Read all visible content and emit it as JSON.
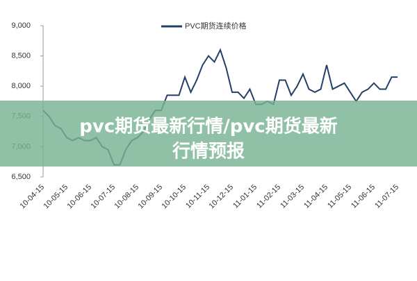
{
  "chart_data": {
    "type": "line",
    "categories": [
      "10-04-15",
      null,
      null,
      null,
      "10-05-15",
      null,
      null,
      null,
      "10-06-15",
      null,
      null,
      null,
      "10-07-15",
      null,
      null,
      null,
      "10-08-15",
      null,
      null,
      null,
      "10-09-15",
      null,
      null,
      null,
      "10-10-15",
      null,
      null,
      null,
      "10-11-15",
      null,
      null,
      null,
      "10-12-15",
      null,
      null,
      null,
      "11-01-15",
      null,
      null,
      null,
      "11-02-15",
      null,
      null,
      null,
      "11-03-15",
      null,
      null,
      null,
      "11-04-15",
      null,
      null,
      null,
      "11-05-15",
      null,
      null,
      null,
      "11-06-15",
      null,
      null,
      null,
      "11-07-15"
    ],
    "series": [
      {
        "name": "PVC期货连续价格",
        "color": "#243f66",
        "values": [
          7600,
          7500,
          7350,
          7300,
          7150,
          7100,
          7150,
          7100,
          7100,
          7150,
          7000,
          6950,
          6700,
          6700,
          6950,
          7100,
          7150,
          7250,
          7450,
          7600,
          7600,
          7850,
          7850,
          7850,
          8150,
          7900,
          8100,
          8350,
          8500,
          8400,
          8600,
          8300,
          7900,
          7900,
          7800,
          7950,
          7700,
          7700,
          7750,
          7700,
          8100,
          8100,
          7850,
          8000,
          8200,
          7950,
          7900,
          7950,
          8350,
          7950,
          8000,
          8050,
          7900,
          7750,
          7900,
          7950,
          8050,
          7950,
          7950,
          8150,
          8150
        ]
      }
    ],
    "ylim": [
      6500,
      9000
    ],
    "yticks": [
      {
        "value": 6500,
        "label": "6,500"
      },
      {
        "value": 7000,
        "label": "7,000"
      },
      {
        "value": 7500,
        "label": "7,500"
      },
      {
        "value": 8000,
        "label": "8,000"
      },
      {
        "value": 8500,
        "label": "8,500"
      },
      {
        "value": 9000,
        "label": "9,000"
      }
    ],
    "annotations": [
      "pvc期货最新行情/pvc期货最新",
      "行情预报"
    ]
  }
}
